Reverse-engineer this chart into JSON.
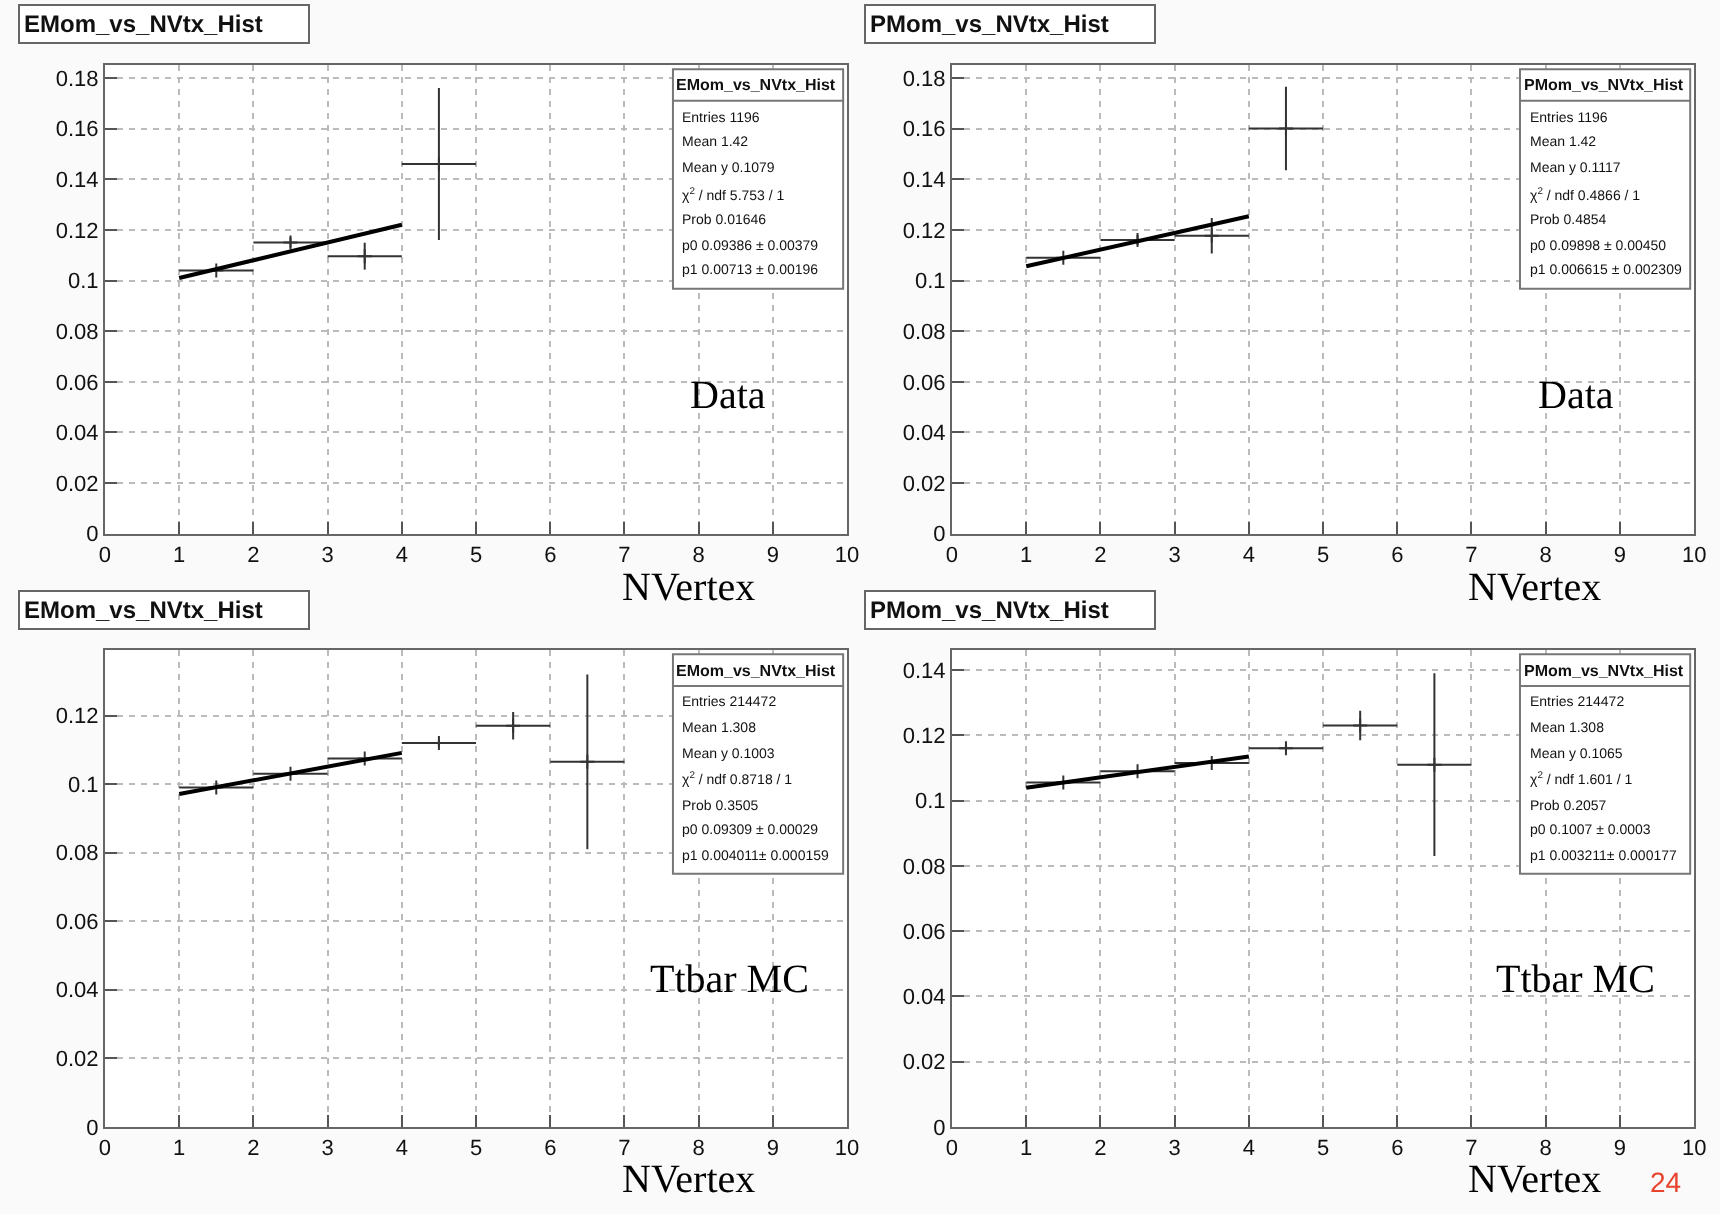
{
  "chart_data": [
    {
      "type": "scatter",
      "title": "EMom_vs_NVtx_Hist",
      "xlabel": "NVertex",
      "xlim": [
        0,
        10
      ],
      "xticks": [
        0,
        1,
        2,
        3,
        4,
        5,
        6,
        7,
        8,
        9,
        10
      ],
      "ylim": [
        0,
        0.185
      ],
      "yticks": [
        0,
        0.02,
        0.04,
        0.06,
        0.08,
        0.1,
        0.12,
        0.14,
        0.16,
        0.18
      ],
      "grid": true,
      "series": [
        {
          "marker": "cross",
          "color": "#333333",
          "x": [
            1.5,
            2.5,
            3.5,
            4.5
          ],
          "values": [
            0.104,
            0.115,
            0.1096,
            0.146
          ],
          "xerrors": [
            0.5,
            0.5,
            0.5,
            0.5
          ],
          "errors": [
            null,
            0.002,
            0.0053,
            0.03
          ]
        },
        {
          "type": "line",
          "color": "#000000",
          "x": [
            1,
            4
          ],
          "values": [
            0.101,
            0.122
          ]
        }
      ],
      "annotations": [
        "EMom_vs_NVtx_Hist",
        "Entries 1196",
        "Mean 1.42",
        "Mean y 0.1079",
        "χ$^{2}$ / ndf 5.753 / 1",
        "Prob 0.01646",
        "p0 0.09386 ± 0.00379",
        "p1 0.00713 ± 0.00196",
        "Data"
      ]
    },
    {
      "type": "scatter",
      "title": "PMom_vs_NVtx_Hist",
      "xlabel": "NVertex",
      "xlim": [
        0,
        10
      ],
      "xticks": [
        0,
        1,
        2,
        3,
        4,
        5,
        6,
        7,
        8,
        9,
        10
      ],
      "ylim": [
        0,
        0.185
      ],
      "yticks": [
        0,
        0.02,
        0.04,
        0.06,
        0.08,
        0.1,
        0.12,
        0.14,
        0.16,
        0.18
      ],
      "grid": true,
      "series": [
        {
          "marker": "cross",
          "color": "#333333",
          "x": [
            1.5,
            2.5,
            3.5,
            4.5
          ],
          "values": [
            0.109,
            0.116,
            0.1177,
            0.16
          ],
          "xerrors": [
            0.5,
            0.5,
            0.5,
            0.5
          ],
          "errors": [
            null,
            0.002,
            0.007,
            0.0165
          ]
        },
        {
          "type": "line",
          "color": "#000000",
          "x": [
            1,
            4
          ],
          "values": [
            0.1056,
            0.1254
          ]
        }
      ],
      "annotations": [
        "PMom_vs_NVtx_Hist",
        "Entries 1196",
        "Mean 1.42",
        "Mean y 0.1117",
        "χ$^{2}$ / ndf 0.4866 / 1",
        "Prob 0.4854",
        "p0 0.09898 ± 0.00450",
        "p1 0.006615 ± 0.002309",
        "Data"
      ]
    },
    {
      "type": "scatter",
      "title": "EMom_vs_NVtx_Hist",
      "xlabel": "NVertex",
      "xlim": [
        0,
        10
      ],
      "xticks": [
        0,
        1,
        2,
        3,
        4,
        5,
        6,
        7,
        8,
        9,
        10
      ],
      "ylim": [
        0,
        0.139
      ],
      "yticks": [
        0,
        0.02,
        0.04,
        0.06,
        0.08,
        0.1,
        0.12
      ],
      "grid": true,
      "series": [
        {
          "marker": "cross",
          "color": "#333333",
          "x": [
            1.5,
            2.5,
            3.5,
            4.5,
            5.5,
            6.5
          ],
          "values": [
            0.099,
            0.103,
            0.1075,
            0.112,
            0.117,
            0.1065
          ],
          "xerrors": [
            0.5,
            0.5,
            0.5,
            0.5,
            0.5,
            0.5
          ],
          "errors": [
            null,
            null,
            null,
            0.001,
            0.004,
            0.0255
          ]
        },
        {
          "type": "line",
          "color": "#000000",
          "x": [
            1,
            4
          ],
          "values": [
            0.0971,
            0.1091
          ]
        }
      ],
      "annotations": [
        "EMom_vs_NVtx_Hist",
        "Entries 214472",
        "Mean 1.308",
        "Mean y 0.1003",
        "χ$^{2}$ / ndf 0.8718 / 1",
        "Prob 0.3505",
        "p0 0.09309 ± 0.00029",
        "p1 0.004011± 0.000159",
        "Ttbar MC"
      ]
    },
    {
      "type": "scatter",
      "title": "PMom_vs_NVtx_Hist",
      "xlabel": "NVertex",
      "xlim": [
        0,
        10
      ],
      "xticks": [
        0,
        1,
        2,
        3,
        4,
        5,
        6,
        7,
        8,
        9,
        10
      ],
      "ylim": [
        0,
        0.146
      ],
      "yticks": [
        0,
        0.02,
        0.04,
        0.06,
        0.08,
        0.1,
        0.12,
        0.14
      ],
      "grid": true,
      "series": [
        {
          "marker": "cross",
          "color": "#333333",
          "x": [
            1.5,
            2.5,
            3.5,
            4.5,
            5.5,
            6.5
          ],
          "values": [
            0.1055,
            0.109,
            0.1115,
            0.116,
            0.123,
            0.111
          ],
          "xerrors": [
            0.5,
            0.5,
            0.5,
            0.5,
            0.5,
            0.5
          ],
          "errors": [
            null,
            null,
            null,
            0.001,
            0.0045,
            0.028
          ]
        },
        {
          "type": "line",
          "color": "#000000",
          "x": [
            1,
            4
          ],
          "values": [
            0.1039,
            0.1135
          ]
        }
      ],
      "annotations": [
        "PMom_vs_NVtx_Hist",
        "Entries 214472",
        "Mean 1.308",
        "Mean y 0.1065",
        "χ$^{2}$ / ndf 1.601 / 1",
        "Prob 0.2057",
        "p0 0.1007 ± 0.0003",
        "p1 0.003211± 0.000177",
        "Ttbar MC",
        "24"
      ]
    }
  ]
}
